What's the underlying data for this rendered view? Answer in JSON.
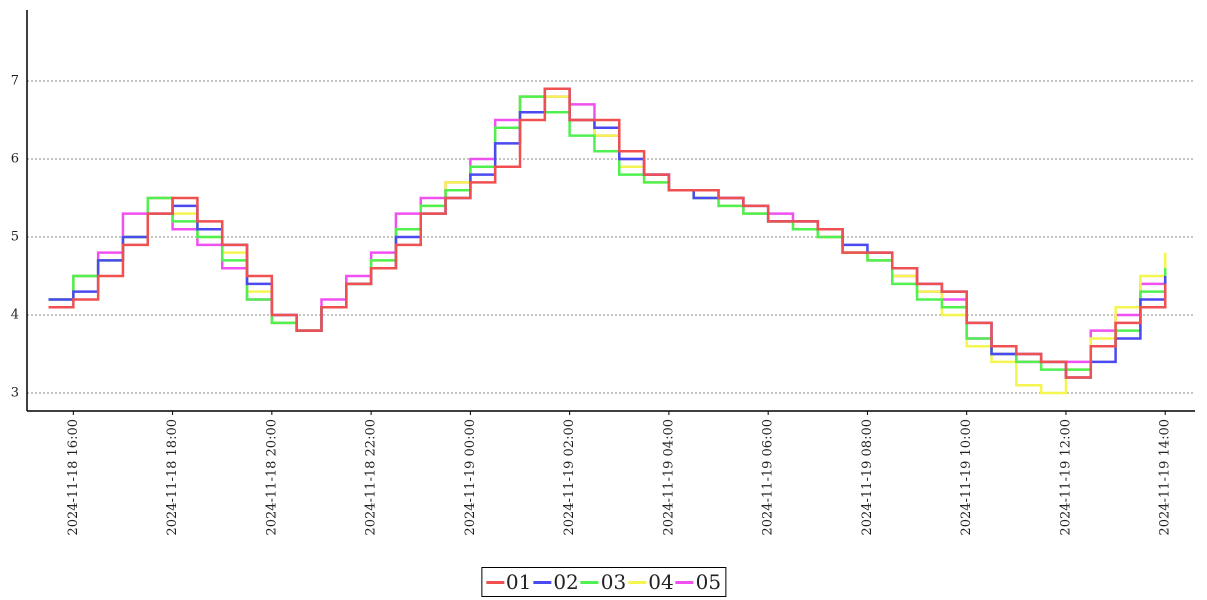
{
  "chart_data": {
    "type": "line",
    "step": "post",
    "x": [
      "2024-11-18 15:30",
      "2024-11-18 16:00",
      "2024-11-18 16:30",
      "2024-11-18 17:00",
      "2024-11-18 17:30",
      "2024-11-18 18:00",
      "2024-11-18 18:30",
      "2024-11-18 19:00",
      "2024-11-18 19:30",
      "2024-11-18 20:00",
      "2024-11-18 20:30",
      "2024-11-18 21:00",
      "2024-11-18 21:30",
      "2024-11-18 22:00",
      "2024-11-18 22:30",
      "2024-11-18 23:00",
      "2024-11-18 23:30",
      "2024-11-19 00:00",
      "2024-11-19 00:30",
      "2024-11-19 01:00",
      "2024-11-19 01:30",
      "2024-11-19 02:00",
      "2024-11-19 02:30",
      "2024-11-19 03:00",
      "2024-11-19 03:30",
      "2024-11-19 04:00",
      "2024-11-19 04:30",
      "2024-11-19 05:00",
      "2024-11-19 05:30",
      "2024-11-19 06:00",
      "2024-11-19 06:30",
      "2024-11-19 07:00",
      "2024-11-19 07:30",
      "2024-11-19 08:00",
      "2024-11-19 08:30",
      "2024-11-19 09:00",
      "2024-11-19 09:30",
      "2024-11-19 10:00",
      "2024-11-19 10:30",
      "2024-11-19 11:00",
      "2024-11-19 11:30",
      "2024-11-19 12:00",
      "2024-11-19 12:30",
      "2024-11-19 13:00",
      "2024-11-19 13:30",
      "2024-11-19 14:00"
    ],
    "series": [
      {
        "name": "01",
        "color": "#f05050",
        "values": [
          4.1,
          4.2,
          4.5,
          4.9,
          5.3,
          5.5,
          5.2,
          4.9,
          4.5,
          4.0,
          3.8,
          4.1,
          4.4,
          4.6,
          4.9,
          5.3,
          5.5,
          5.7,
          5.9,
          6.5,
          6.9,
          6.5,
          6.5,
          6.1,
          5.8,
          5.6,
          5.6,
          5.5,
          5.4,
          5.2,
          5.2,
          5.1,
          4.8,
          4.8,
          4.6,
          4.4,
          4.3,
          3.9,
          3.6,
          3.5,
          3.4,
          3.2,
          3.6,
          3.9,
          4.1,
          4.4
        ]
      },
      {
        "name": "02",
        "color": "#4a4af0",
        "values": [
          4.2,
          4.3,
          4.7,
          5.0,
          5.3,
          5.4,
          5.1,
          4.9,
          4.4,
          4.0,
          3.8,
          4.1,
          4.4,
          4.6,
          5.0,
          5.3,
          5.5,
          5.8,
          6.2,
          6.6,
          6.9,
          6.5,
          6.4,
          6.0,
          5.8,
          5.6,
          5.5,
          5.5,
          5.4,
          5.2,
          5.2,
          5.1,
          4.9,
          4.8,
          4.6,
          4.4,
          4.3,
          3.9,
          3.5,
          3.5,
          3.4,
          3.2,
          3.4,
          3.7,
          4.2,
          4.5
        ]
      },
      {
        "name": "03",
        "color": "#50f050",
        "values": [
          4.2,
          4.5,
          4.7,
          5.0,
          5.5,
          5.2,
          5.0,
          4.7,
          4.2,
          3.9,
          3.8,
          4.1,
          4.4,
          4.7,
          5.1,
          5.4,
          5.6,
          5.9,
          6.4,
          6.8,
          6.6,
          6.3,
          6.1,
          5.8,
          5.7,
          5.6,
          5.5,
          5.4,
          5.3,
          5.2,
          5.1,
          5.0,
          4.8,
          4.7,
          4.4,
          4.2,
          4.1,
          3.7,
          3.5,
          3.4,
          3.3,
          3.3,
          3.6,
          3.8,
          4.3,
          4.6
        ]
      },
      {
        "name": "04",
        "color": "#f5f550",
        "values": [
          4.2,
          4.5,
          4.7,
          5.0,
          5.5,
          5.3,
          5.0,
          4.8,
          4.3,
          3.9,
          3.8,
          4.1,
          4.4,
          4.7,
          5.1,
          5.4,
          5.7,
          5.9,
          6.4,
          6.8,
          6.8,
          6.5,
          6.3,
          5.9,
          5.7,
          5.6,
          5.5,
          5.4,
          5.3,
          5.2,
          5.1,
          5.0,
          4.8,
          4.7,
          4.5,
          4.3,
          4.0,
          3.6,
          3.4,
          3.1,
          3.0,
          3.3,
          3.7,
          4.1,
          4.5,
          4.8
        ]
      },
      {
        "name": "05",
        "color": "#f050f0",
        "values": [
          4.2,
          4.5,
          4.8,
          5.3,
          5.5,
          5.1,
          4.9,
          4.6,
          4.2,
          3.9,
          3.8,
          4.2,
          4.5,
          4.8,
          5.3,
          5.5,
          5.7,
          6.0,
          6.5,
          6.8,
          6.8,
          6.7,
          6.3,
          6.0,
          5.8,
          5.6,
          5.6,
          5.5,
          5.3,
          5.3,
          5.2,
          5.0,
          4.8,
          4.7,
          4.5,
          4.3,
          4.2,
          3.7,
          3.5,
          3.4,
          3.4,
          3.4,
          3.8,
          4.0,
          4.4,
          4.7
        ]
      }
    ],
    "xlim": [
      "2024-11-18 15:04",
      "2024-11-19 14:36"
    ],
    "xticks": [
      "2024-11-18 16:00",
      "2024-11-18 18:00",
      "2024-11-18 20:00",
      "2024-11-18 22:00",
      "2024-11-19 00:00",
      "2024-11-19 02:00",
      "2024-11-19 04:00",
      "2024-11-19 06:00",
      "2024-11-19 08:00",
      "2024-11-19 10:00",
      "2024-11-19 12:00",
      "2024-11-19 14:00"
    ],
    "ylim": [
      2.77,
      7.91
    ],
    "yticks": [
      3,
      4,
      5,
      6,
      7
    ],
    "grid": true,
    "legend": "bottom"
  }
}
